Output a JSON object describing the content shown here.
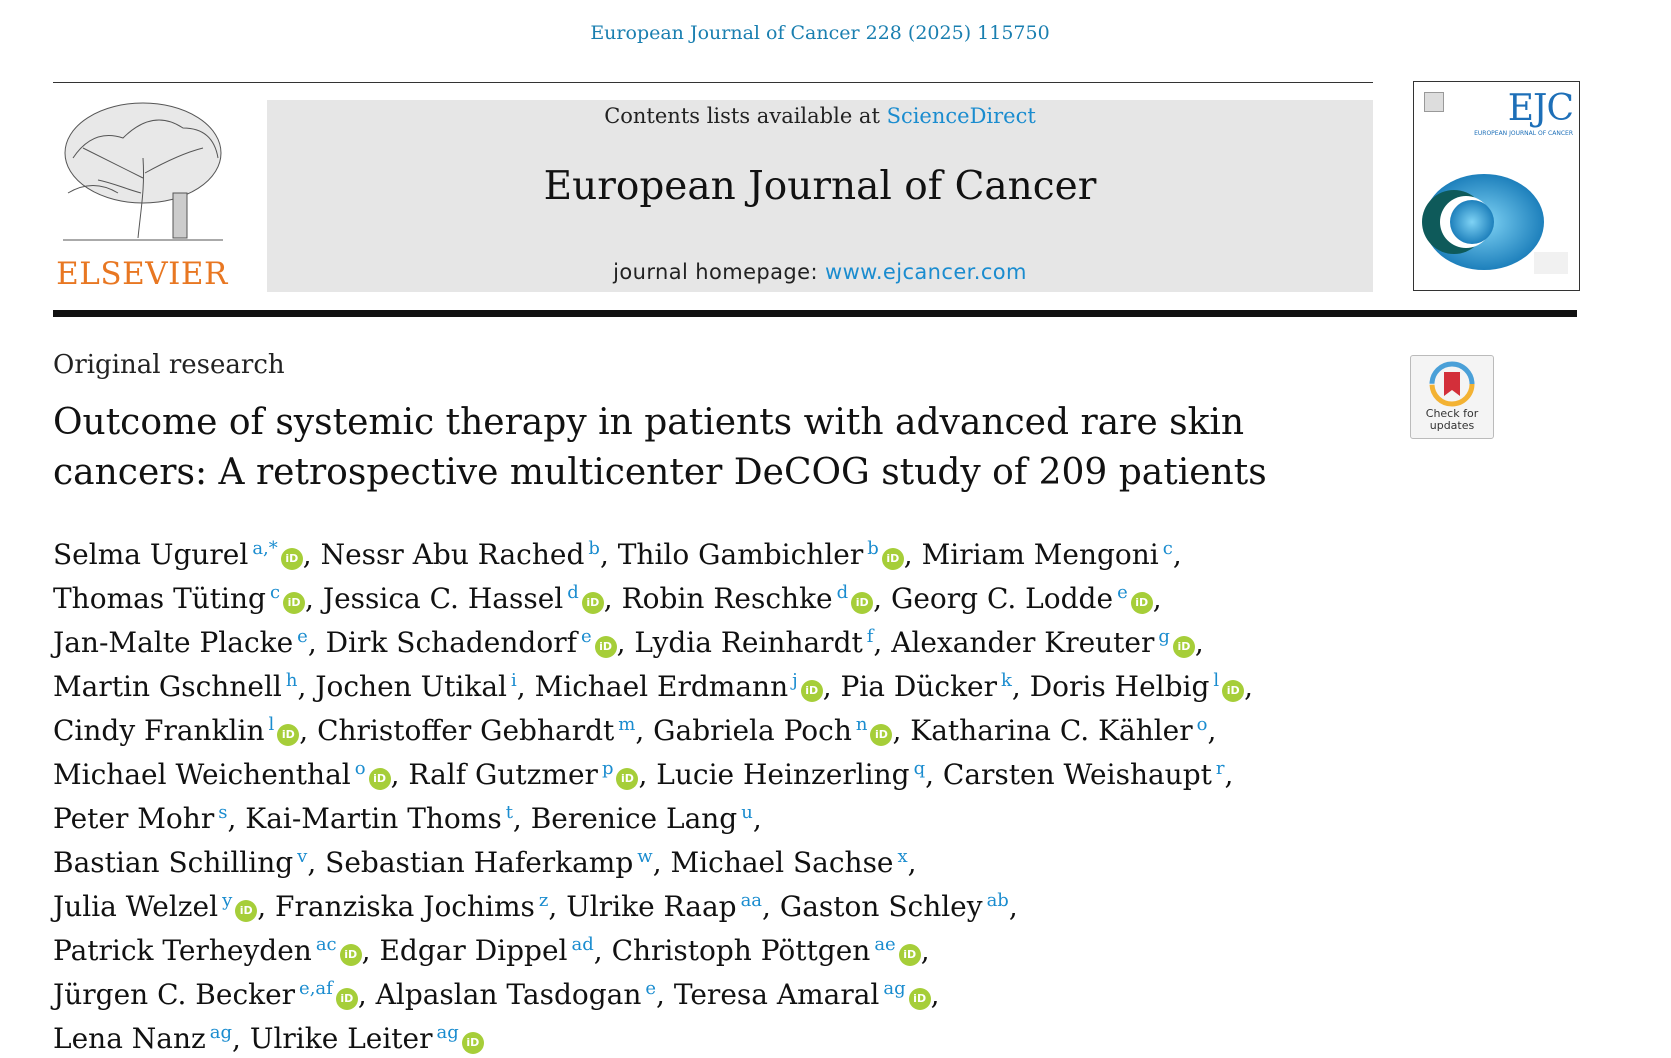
{
  "header": {
    "running_head": "European Journal of Cancer 228 (2025) 115750",
    "publisher_logo_text": "ELSEVIER",
    "contents_prefix": "Contents lists available at ",
    "contents_link": "ScienceDirect",
    "journal_title": "European Journal of Cancer",
    "homepage_prefix": "journal homepage: ",
    "homepage_link": "www.ejcancer.com",
    "cover": {
      "title": "EJC",
      "subtitle": "EUROPEAN JOURNAL OF CANCER"
    }
  },
  "article": {
    "type": "Original research",
    "check_updates": "Check for updates",
    "title": "Outcome of systemic therapy in patients with advanced rare skin cancers: A retrospective multicenter DeCOG study of 209 patients"
  },
  "author_lines": [
    [
      {
        "name": "Selma Ugurel",
        "aff": "a,*",
        "orcid": true
      },
      {
        "name": "Nessr Abu Rached",
        "aff": "b",
        "orcid": false
      },
      {
        "name": "Thilo Gambichler",
        "aff": "b",
        "orcid": true
      },
      {
        "name": "Miriam Mengoni",
        "aff": "c",
        "orcid": false
      }
    ],
    [
      {
        "name": "Thomas Tüting",
        "aff": "c",
        "orcid": true
      },
      {
        "name": "Jessica C. Hassel",
        "aff": "d",
        "orcid": true
      },
      {
        "name": "Robin Reschke",
        "aff": "d",
        "orcid": true
      },
      {
        "name": "Georg C. Lodde",
        "aff": "e",
        "orcid": true
      }
    ],
    [
      {
        "name": "Jan-Malte Placke",
        "aff": "e",
        "orcid": false
      },
      {
        "name": "Dirk Schadendorf",
        "aff": "e",
        "orcid": true
      },
      {
        "name": "Lydia Reinhardt",
        "aff": "f",
        "orcid": false
      },
      {
        "name": "Alexander Kreuter",
        "aff": "g",
        "orcid": true
      }
    ],
    [
      {
        "name": "Martin Gschnell",
        "aff": "h",
        "orcid": false
      },
      {
        "name": "Jochen Utikal",
        "aff": "i",
        "orcid": false
      },
      {
        "name": "Michael Erdmann",
        "aff": "j",
        "orcid": true
      },
      {
        "name": "Pia Dücker",
        "aff": "k",
        "orcid": false
      },
      {
        "name": "Doris Helbig",
        "aff": "l",
        "orcid": true
      }
    ],
    [
      {
        "name": "Cindy Franklin",
        "aff": "l",
        "orcid": true
      },
      {
        "name": "Christoffer Gebhardt",
        "aff": "m",
        "orcid": false
      },
      {
        "name": "Gabriela Poch",
        "aff": "n",
        "orcid": true
      },
      {
        "name": "Katharina C. Kähler",
        "aff": "o",
        "orcid": false
      }
    ],
    [
      {
        "name": "Michael Weichenthal",
        "aff": "o",
        "orcid": true
      },
      {
        "name": "Ralf Gutzmer",
        "aff": "p",
        "orcid": true
      },
      {
        "name": "Lucie Heinzerling",
        "aff": "q",
        "orcid": false
      },
      {
        "name": "Carsten Weishaupt",
        "aff": "r",
        "orcid": false
      }
    ],
    [
      {
        "name": "Peter Mohr",
        "aff": "s",
        "orcid": false
      },
      {
        "name": "Kai-Martin Thoms",
        "aff": "t",
        "orcid": false
      },
      {
        "name": "Berenice Lang",
        "aff": "u",
        "orcid": false
      }
    ],
    [
      {
        "name": "Bastian Schilling",
        "aff": "v",
        "orcid": false
      },
      {
        "name": "Sebastian Haferkamp",
        "aff": "w",
        "orcid": false
      },
      {
        "name": "Michael Sachse",
        "aff": "x",
        "orcid": false
      }
    ],
    [
      {
        "name": "Julia Welzel",
        "aff": "y",
        "orcid": true
      },
      {
        "name": "Franziska Jochims",
        "aff": "z",
        "orcid": false
      },
      {
        "name": "Ulrike Raap",
        "aff": "aa",
        "orcid": false
      },
      {
        "name": "Gaston Schley",
        "aff": "ab",
        "orcid": false
      }
    ],
    [
      {
        "name": "Patrick Terheyden",
        "aff": "ac",
        "orcid": true
      },
      {
        "name": "Edgar Dippel",
        "aff": "ad",
        "orcid": false
      },
      {
        "name": "Christoph Pöttgen",
        "aff": "ae",
        "orcid": true
      }
    ],
    [
      {
        "name": "Jürgen C. Becker",
        "aff": "e,af",
        "orcid": true
      },
      {
        "name": "Alpaslan Tasdogan",
        "aff": "e",
        "orcid": false
      },
      {
        "name": "Teresa Amaral",
        "aff": "ag",
        "orcid": true
      }
    ],
    [
      {
        "name": "Lena Nanz",
        "aff": "ag",
        "orcid": false
      },
      {
        "name": "Ulrike Leiter",
        "aff": "ag",
        "orcid": true
      }
    ]
  ],
  "orcid_glyph": "iD",
  "colors": {
    "link": "#1a8ccf",
    "elsevier_orange": "#e87722",
    "orcid_green": "#a6ce39"
  }
}
